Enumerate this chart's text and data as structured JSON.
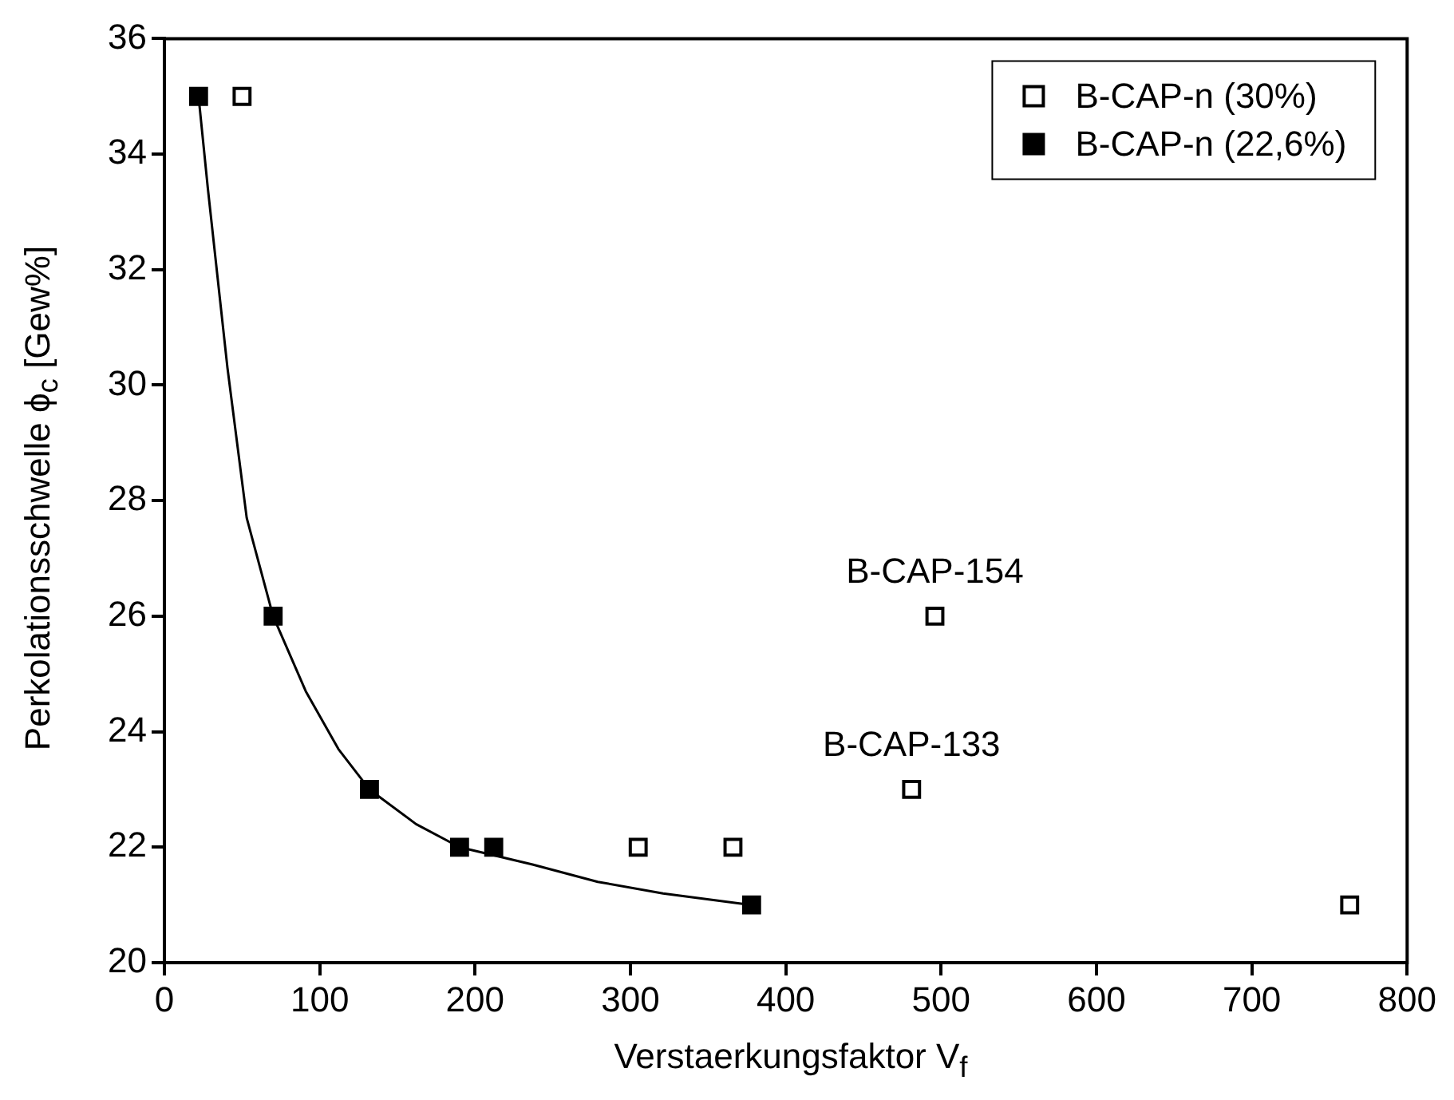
{
  "chart_data": {
    "type": "scatter",
    "xlabel": "Verstaerkungsfaktor V$_{f}$",
    "ylabel": "Perkolationsschwelle ϕ$_{c}$ [Gew%]",
    "xlim": [
      0,
      800
    ],
    "xticks": [
      0,
      100,
      200,
      300,
      400,
      500,
      600,
      700,
      800
    ],
    "ylim": [
      20,
      36
    ],
    "yticks": [
      20,
      22,
      24,
      26,
      28,
      30,
      32,
      34,
      36
    ],
    "grid": false,
    "legend": "top right",
    "marker": "square",
    "series": [
      {
        "name": "B-CAP-n (30%)",
        "color": "#000000",
        "x": [
          50,
          305,
          366,
          481,
          496,
          763
        ],
        "values": [
          35,
          22,
          22,
          23,
          26,
          21
        ]
      },
      {
        "name": "B-CAP-n (22,6%)",
        "color": "#000000",
        "x": [
          22,
          70,
          132,
          190,
          212,
          378
        ],
        "values": [
          35,
          26,
          23,
          22,
          22,
          21
        ]
      },
      {
        "type": "line",
        "color": "#000000",
        "marker": "none",
        "line_style": "solid",
        "x": [
          22,
          28,
          40.6,
          53,
          70,
          91,
          112,
          132,
          162,
          190,
          237,
          279,
          321,
          378
        ],
        "values": [
          35,
          33.4,
          30.3,
          27.7,
          26,
          24.7,
          23.7,
          23,
          22.4,
          22,
          21.7,
          21.4,
          21.2,
          21
        ]
      }
    ],
    "annotations": [
      {
        "text": "B-CAP-154",
        "x": 496,
        "y": 26
      },
      {
        "text": "B-CAP-133",
        "x": 481,
        "y": 23
      }
    ]
  }
}
